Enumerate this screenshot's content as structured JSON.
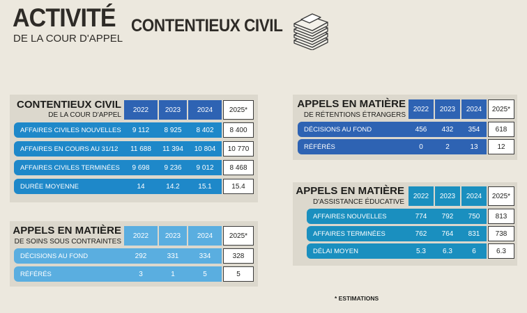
{
  "header": {
    "title": "ACTIVITÉ",
    "subtitle": "DE LA COUR D'APPEL",
    "section": "CONTENTIEUX CIVIL",
    "icon": "books-stack-icon"
  },
  "years": [
    "2022",
    "2023",
    "2024",
    "2025*"
  ],
  "colors": {
    "dark_blue": "#2e63b3",
    "mid_blue": "#1e88c9",
    "light_blue": "#5aaee0",
    "teal": "#1a8fbf",
    "panel_bg": "#dcd8cd"
  },
  "tables": {
    "civil": {
      "title": "CONTENTIEUX CIVIL",
      "subtitle": "DE LA COUR D'APPEL",
      "rows": [
        {
          "label": "AFFAIRES CIVILES NOUVELLES",
          "values": [
            "9 112",
            "8 925",
            "8 402",
            "8 400"
          ]
        },
        {
          "label": "AFFAIRES EN COURS AU 31/12",
          "values": [
            "11 688",
            "11 394",
            "10 804",
            "10 770"
          ]
        },
        {
          "label": "AFFAIRES CIVILES TERMINÉES",
          "values": [
            "9 698",
            "9 236",
            "9 012",
            "8 468"
          ]
        },
        {
          "label": "DURÉE MOYENNE",
          "values": [
            "14",
            "14.2",
            "15.1",
            "15.4"
          ]
        }
      ]
    },
    "soins": {
      "title": "APPELS EN MATIÈRE",
      "subtitle": "DE SOINS SOUS CONTRAINTES",
      "rows": [
        {
          "label": "DÉCISIONS AU FOND",
          "values": [
            "292",
            "331",
            "334",
            "328"
          ]
        },
        {
          "label": "RÉFÉRÉS",
          "values": [
            "3",
            "1",
            "5",
            "5"
          ]
        }
      ]
    },
    "etrangers": {
      "title": "APPELS EN MATIÈRE",
      "subtitle": "DE RÉTENTIONS ÉTRANGERS",
      "rows": [
        {
          "label": "DÉCISIONS AU FOND",
          "values": [
            "456",
            "432",
            "354",
            "618"
          ]
        },
        {
          "label": "RÉFÉRÉS",
          "values": [
            "0",
            "2",
            "13",
            "12"
          ]
        }
      ]
    },
    "educative": {
      "title": "APPELS EN MATIÈRE",
      "subtitle": "D'ASSISTANCE ÉDUCATIVE",
      "rows": [
        {
          "label": "AFFAIRES NOUVELLES",
          "values": [
            "774",
            "792",
            "750",
            "813"
          ]
        },
        {
          "label": "AFFAIRES TERMINÉES",
          "values": [
            "762",
            "764",
            "831",
            "738"
          ]
        },
        {
          "label": "DÉLAI MOYEN",
          "values": [
            "5.3",
            "6.3",
            "6",
            "6.3"
          ]
        }
      ]
    }
  },
  "footnote": "* ESTIMATIONS"
}
